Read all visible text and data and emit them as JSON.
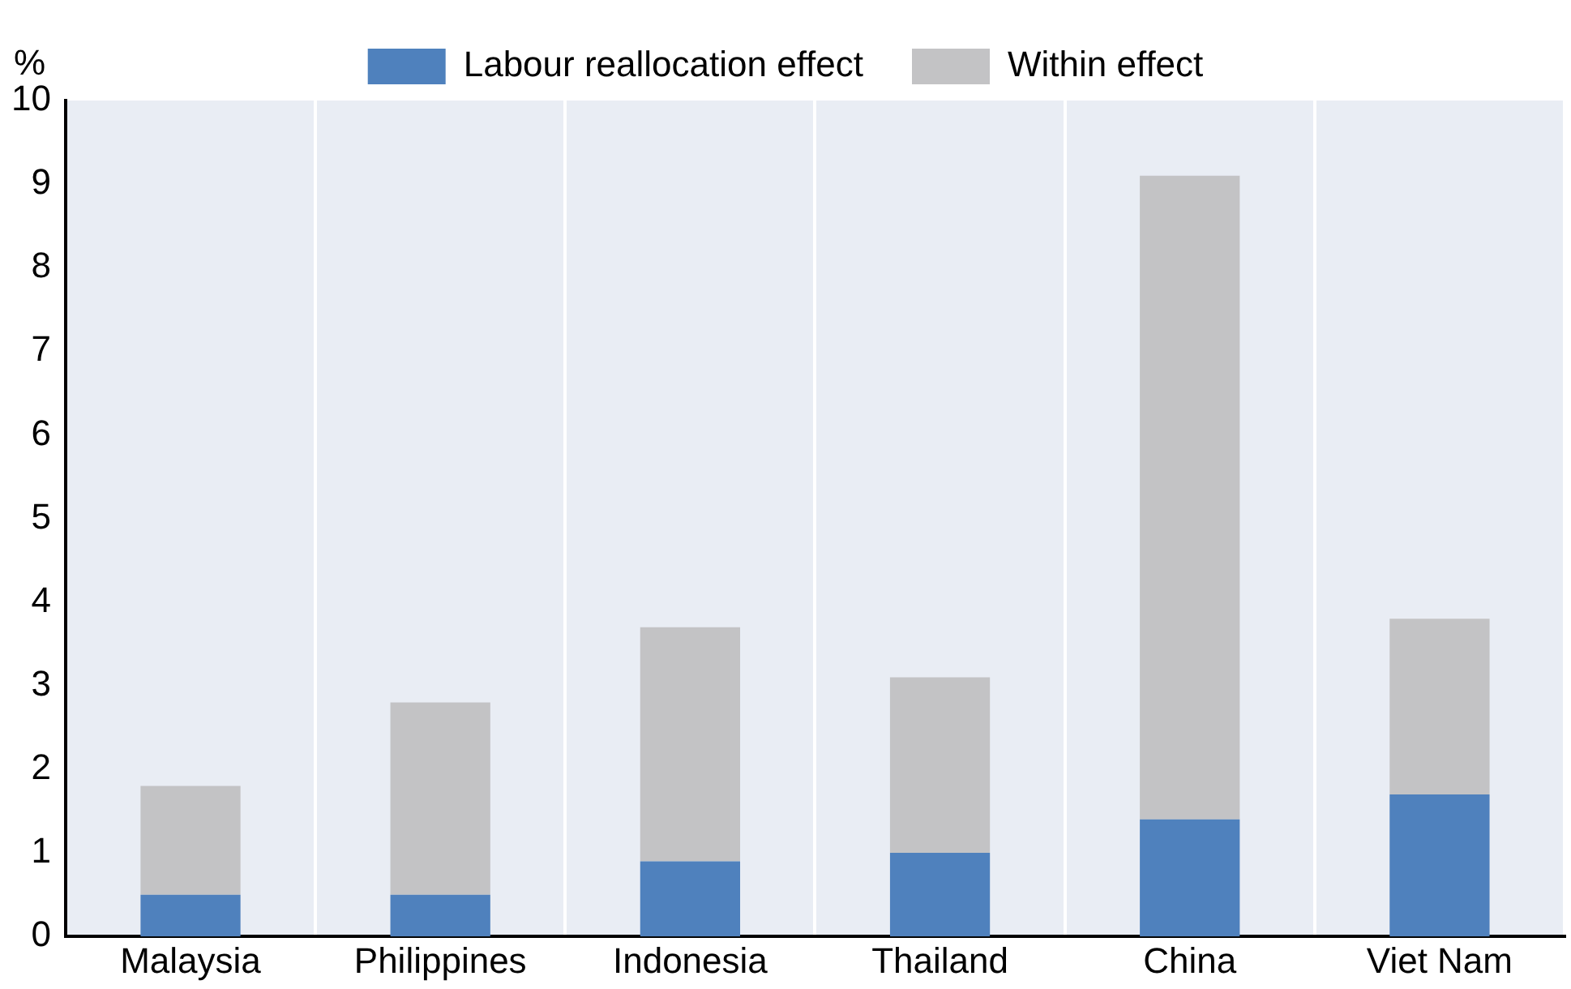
{
  "chart_data": {
    "type": "bar",
    "stacked": true,
    "ylabel": "%",
    "categories": [
      "Malaysia",
      "Philippines",
      "Indonesia",
      "Thailand",
      "China",
      "Viet Nam"
    ],
    "series": [
      {
        "name": "Labour reallocation effect",
        "color": "#4f81bd",
        "values": [
          0.5,
          0.5,
          0.9,
          1.0,
          1.4,
          1.7
        ]
      },
      {
        "name": "Within effect",
        "color": "#c3c3c5",
        "values": [
          1.3,
          2.3,
          2.8,
          2.1,
          7.7,
          2.1
        ]
      }
    ],
    "ylim": [
      0,
      10
    ],
    "yticks": [
      0,
      1,
      2,
      3,
      4,
      5,
      6,
      7,
      8,
      9,
      10
    ],
    "grid": "x",
    "legend": "top"
  }
}
